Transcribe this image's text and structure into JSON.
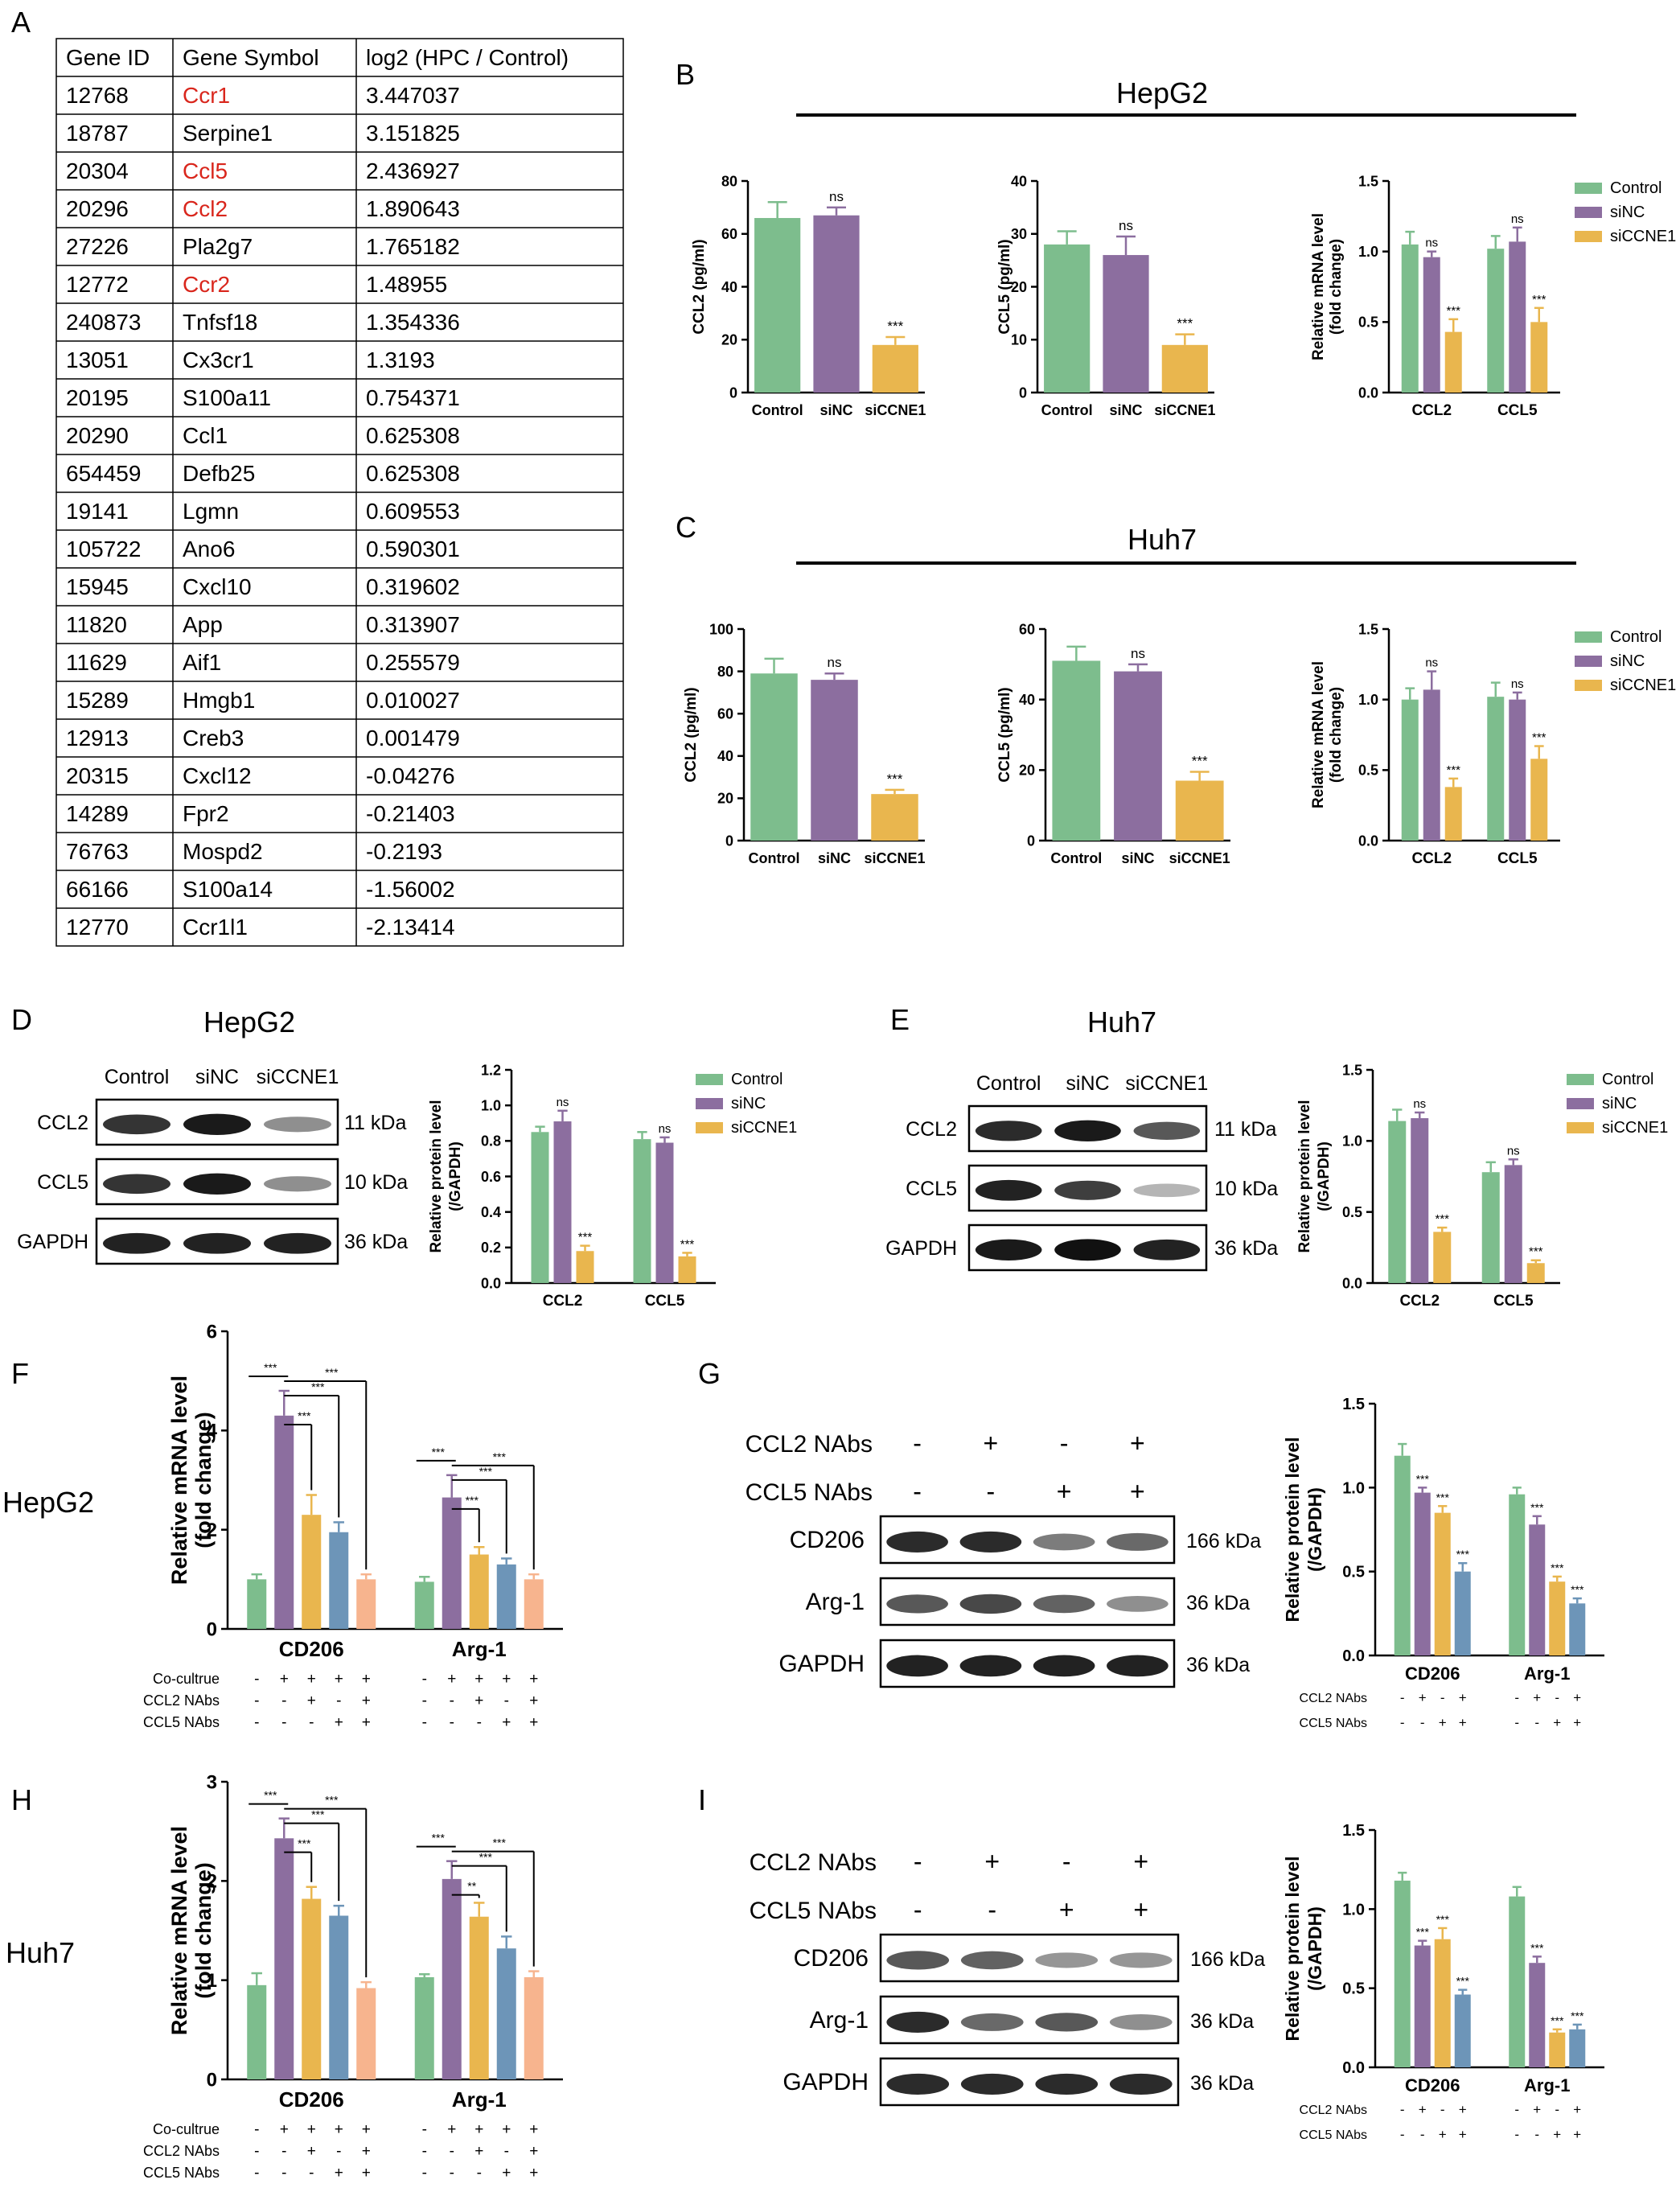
{
  "panel_letters": [
    "A",
    "B",
    "C",
    "D",
    "E",
    "F",
    "G",
    "H",
    "I"
  ],
  "table": {
    "headers": [
      "Gene ID",
      "Gene Symbol",
      "log2 (HPC / Control)"
    ],
    "highlight_color": "#d9261c",
    "rows": [
      [
        "12768",
        "Ccr1",
        "3.447037",
        true
      ],
      [
        "18787",
        "Serpine1",
        "3.151825",
        false
      ],
      [
        "20304",
        "Ccl5",
        "2.436927",
        true
      ],
      [
        "20296",
        "Ccl2",
        "1.890643",
        true
      ],
      [
        "27226",
        "Pla2g7",
        "1.765182",
        false
      ],
      [
        "12772",
        "Ccr2",
        "1.48955",
        true
      ],
      [
        "240873",
        "Tnfsf18",
        "1.354336",
        false
      ],
      [
        "13051",
        "Cx3cr1",
        "1.3193",
        false
      ],
      [
        "20195",
        "S100a11",
        "0.754371",
        false
      ],
      [
        "20290",
        "Ccl1",
        "0.625308",
        false
      ],
      [
        "654459",
        "Defb25",
        "0.625308",
        false
      ],
      [
        "19141",
        "Lgmn",
        "0.609553",
        false
      ],
      [
        "105722",
        "Ano6",
        "0.590301",
        false
      ],
      [
        "15945",
        "Cxcl10",
        "0.319602",
        false
      ],
      [
        "11820",
        "App",
        "0.313907",
        false
      ],
      [
        "11629",
        "Aif1",
        "0.255579",
        false
      ],
      [
        "15289",
        "Hmgb1",
        "0.010027",
        false
      ],
      [
        "12913",
        "Creb3",
        "0.001479",
        false
      ],
      [
        "20315",
        "Cxcl12",
        "-0.04276",
        false
      ],
      [
        "14289",
        "Fpr2",
        "-0.21403",
        false
      ],
      [
        "76763",
        "Mospd2",
        "-0.2193",
        false
      ],
      [
        "66166",
        "S100a14",
        "-1.56002",
        false
      ],
      [
        "12770",
        "Ccr1l1",
        "-2.13414",
        false
      ]
    ]
  },
  "colors": {
    "Control": "#7dbd8d",
    "siNC": "#8c6e9f",
    "siCCNE1": "#e9b64e",
    "blue": "#6d95b8",
    "peach": "#f7b48e",
    "sig": "#000000"
  },
  "legend3": [
    "Control",
    "siNC",
    "siCCNE1"
  ],
  "titles": {
    "B": "HepG2",
    "C": "Huh7",
    "D": "HepG2",
    "E": "Huh7",
    "F": "HepG2",
    "H": "Huh7"
  },
  "blots": {
    "D": {
      "lanes": [
        "Control",
        "siNC",
        "siCCNE1"
      ],
      "rows": [
        "CCL2",
        "CCL5",
        "GAPDH"
      ],
      "sizes": [
        "11 kDa",
        "10 kDa",
        "36 kDa"
      ]
    },
    "E": {
      "lanes": [
        "Control",
        "siNC",
        "siCCNE1"
      ],
      "rows": [
        "CCL2",
        "CCL5",
        "GAPDH"
      ],
      "sizes": [
        "11 kDa",
        "10 kDa",
        "36 kDa"
      ]
    },
    "G": {
      "treat": [
        [
          "CCL2 NAbs",
          "-",
          "+",
          "-",
          "+"
        ],
        [
          "CCL5 NAbs",
          "-",
          "-",
          "+",
          "+"
        ]
      ],
      "rows": [
        "CD206",
        "Arg-1",
        "GAPDH"
      ],
      "sizes": [
        "166 kDa",
        "36 kDa",
        "36 kDa"
      ]
    },
    "I": {
      "treat": [
        [
          "CCL2 NAbs",
          "-",
          "+",
          "-",
          "+"
        ],
        [
          "CCL5 NAbs",
          "-",
          "-",
          "+",
          "+"
        ]
      ],
      "rows": [
        "CD206",
        "Arg-1",
        "GAPDH"
      ],
      "sizes": [
        "166 kDa",
        "36 kDa",
        "36 kDa"
      ]
    }
  },
  "chart_data": [
    {
      "id": "B1",
      "type": "bar",
      "categories": [
        "Control",
        "siNC",
        "siCCNE1"
      ],
      "values": [
        66,
        67,
        18
      ],
      "errors": [
        6,
        3,
        3
      ],
      "sig": [
        "",
        "ns",
        "***"
      ],
      "ylabel": "CCL2 (pg/ml)",
      "ylim": [
        0,
        80
      ],
      "yticks": [
        0,
        20,
        40,
        60,
        80
      ]
    },
    {
      "id": "B2",
      "type": "bar",
      "categories": [
        "Control",
        "siNC",
        "siCCNE1"
      ],
      "values": [
        28,
        26,
        9
      ],
      "errors": [
        2.5,
        3.5,
        2
      ],
      "sig": [
        "",
        "ns",
        "***"
      ],
      "ylabel": "CCL5 (pg/ml)",
      "ylim": [
        0,
        40
      ],
      "yticks": [
        0,
        10,
        20,
        30,
        40
      ]
    },
    {
      "id": "B3",
      "type": "bar",
      "categories": [
        "CCL2",
        "CCL5"
      ],
      "series": [
        {
          "name": "Control",
          "values": [
            1.05,
            1.02
          ],
          "errors": [
            0.09,
            0.09
          ],
          "sig": [
            "",
            ""
          ]
        },
        {
          "name": "siNC",
          "values": [
            0.96,
            1.07
          ],
          "errors": [
            0.04,
            0.1
          ],
          "sig": [
            "ns",
            "ns"
          ]
        },
        {
          "name": "siCCNE1",
          "values": [
            0.43,
            0.5
          ],
          "errors": [
            0.09,
            0.1
          ],
          "sig": [
            "***",
            "***"
          ]
        }
      ],
      "ylabel": "Relative mRNA level (fold change)",
      "ylim": [
        0,
        1.5
      ],
      "yticks": [
        "0.0",
        "0.5",
        "1.0",
        "1.5"
      ]
    },
    {
      "id": "C1",
      "type": "bar",
      "categories": [
        "Control",
        "siNC",
        "siCCNE1"
      ],
      "values": [
        79,
        76,
        22
      ],
      "errors": [
        7,
        3,
        2
      ],
      "sig": [
        "",
        "ns",
        "***"
      ],
      "ylabel": "CCL2 (pg/ml)",
      "ylim": [
        0,
        100
      ],
      "yticks": [
        0,
        20,
        40,
        60,
        80,
        100
      ]
    },
    {
      "id": "C2",
      "type": "bar",
      "categories": [
        "Control",
        "siNC",
        "siCCNE1"
      ],
      "values": [
        51,
        48,
        17
      ],
      "errors": [
        4,
        2,
        2.5
      ],
      "sig": [
        "",
        "ns",
        "***"
      ],
      "ylabel": "CCL5 (pg/ml)",
      "ylim": [
        0,
        60
      ],
      "yticks": [
        0,
        20,
        40,
        60
      ]
    },
    {
      "id": "C3",
      "type": "bar",
      "categories": [
        "CCL2",
        "CCL5"
      ],
      "series": [
        {
          "name": "Control",
          "values": [
            1.0,
            1.02
          ],
          "errors": [
            0.08,
            0.1
          ],
          "sig": [
            "",
            ""
          ]
        },
        {
          "name": "siNC",
          "values": [
            1.07,
            1.0
          ],
          "errors": [
            0.13,
            0.05
          ],
          "sig": [
            "ns",
            "ns"
          ]
        },
        {
          "name": "siCCNE1",
          "values": [
            0.38,
            0.58
          ],
          "errors": [
            0.06,
            0.09
          ],
          "sig": [
            "***",
            "***"
          ]
        }
      ],
      "ylabel": "Relative mRNA level (fold change)",
      "ylim": [
        0,
        1.5
      ],
      "yticks": [
        "0.0",
        "0.5",
        "1.0",
        "1.5"
      ]
    },
    {
      "id": "D1",
      "type": "bar",
      "categories": [
        "CCL2",
        "CCL5"
      ],
      "series": [
        {
          "name": "Control",
          "values": [
            0.85,
            0.81
          ],
          "errors": [
            0.03,
            0.04
          ],
          "sig": [
            "",
            ""
          ]
        },
        {
          "name": "siNC",
          "values": [
            0.91,
            0.79
          ],
          "errors": [
            0.06,
            0.03
          ],
          "sig": [
            "ns",
            "ns"
          ]
        },
        {
          "name": "siCCNE1",
          "values": [
            0.18,
            0.15
          ],
          "errors": [
            0.03,
            0.02
          ],
          "sig": [
            "***",
            "***"
          ]
        }
      ],
      "ylabel": "Relative protein level (/GAPDH)",
      "ylim": [
        0,
        1.2
      ],
      "yticks": [
        "0.0",
        "0.2",
        "0.4",
        "0.6",
        "0.8",
        "1.0",
        "1.2"
      ]
    },
    {
      "id": "E1",
      "type": "bar",
      "categories": [
        "CCL2",
        "CCL5"
      ],
      "series": [
        {
          "name": "Control",
          "values": [
            1.14,
            0.78
          ],
          "errors": [
            0.08,
            0.07
          ],
          "sig": [
            "",
            ""
          ]
        },
        {
          "name": "siNC",
          "values": [
            1.16,
            0.83
          ],
          "errors": [
            0.04,
            0.04
          ],
          "sig": [
            "ns",
            "ns"
          ]
        },
        {
          "name": "siCCNE1",
          "values": [
            0.36,
            0.14
          ],
          "errors": [
            0.03,
            0.02
          ],
          "sig": [
            "***",
            "***"
          ]
        }
      ],
      "ylabel": "Relative protein level (/GAPDH)",
      "ylim": [
        0,
        1.5
      ],
      "yticks": [
        "0.0",
        "0.5",
        "1.0",
        "1.5"
      ]
    },
    {
      "id": "F1",
      "type": "bar",
      "categories": [
        "CD206",
        "Arg-1"
      ],
      "series": [
        {
          "name": "s1",
          "values": [
            1.0,
            0.95
          ],
          "errors": [
            0.1,
            0.1
          ]
        },
        {
          "name": "s2",
          "values": [
            4.3,
            2.65
          ],
          "errors": [
            0.5,
            0.45
          ]
        },
        {
          "name": "s3",
          "values": [
            2.3,
            1.5
          ],
          "errors": [
            0.4,
            0.15
          ]
        },
        {
          "name": "s4",
          "values": [
            1.95,
            1.3
          ],
          "errors": [
            0.2,
            0.12
          ]
        },
        {
          "name": "s5",
          "values": [
            1.0,
            1.0
          ],
          "errors": [
            0.1,
            0.1
          ]
        }
      ],
      "brackets": [
        [
          "***",
          "***",
          "***",
          "***"
        ],
        [
          "***",
          "***",
          "***",
          "***"
        ]
      ],
      "ylabel": "Relative mRNA level (fold change)",
      "ylim": [
        0,
        6
      ],
      "yticks": [
        0,
        2,
        4,
        6
      ],
      "cond": [
        [
          "Co-cultrue",
          "-",
          "+",
          "+",
          "+",
          "+"
        ],
        [
          "CCL2 NAbs",
          "-",
          "-",
          "+",
          "-",
          "+"
        ],
        [
          "CCL5 NAbs",
          "-",
          "-",
          "-",
          "+",
          "+"
        ]
      ]
    },
    {
      "id": "G1",
      "type": "bar",
      "categories": [
        "CD206",
        "Arg-1"
      ],
      "series": [
        {
          "name": "s1",
          "values": [
            1.19,
            0.96
          ],
          "errors": [
            0.07,
            0.04
          ],
          "sig": [
            "",
            ""
          ]
        },
        {
          "name": "s2",
          "values": [
            0.97,
            0.78
          ],
          "errors": [
            0.03,
            0.05
          ],
          "sig": [
            "***",
            "***"
          ]
        },
        {
          "name": "s3",
          "values": [
            0.85,
            0.44
          ],
          "errors": [
            0.04,
            0.03
          ],
          "sig": [
            "***",
            "***"
          ]
        },
        {
          "name": "s4",
          "values": [
            0.5,
            0.31
          ],
          "errors": [
            0.05,
            0.03
          ],
          "sig": [
            "***",
            "***"
          ]
        }
      ],
      "ylabel": "Relative protein level (/GAPDH)",
      "ylim": [
        0,
        1.5
      ],
      "yticks": [
        "0.0",
        "0.5",
        "1.0",
        "1.5"
      ],
      "cond": [
        [
          "CCL2 NAbs",
          "-",
          "+",
          "-",
          "+"
        ],
        [
          "CCL5 NAbs",
          "-",
          "-",
          "+",
          "+"
        ]
      ]
    },
    {
      "id": "H1",
      "type": "bar",
      "categories": [
        "CD206",
        "Arg-1"
      ],
      "series": [
        {
          "name": "s1",
          "values": [
            0.95,
            1.03
          ],
          "errors": [
            0.12,
            0.03
          ]
        },
        {
          "name": "s2",
          "values": [
            2.43,
            2.02
          ],
          "errors": [
            0.2,
            0.18
          ]
        },
        {
          "name": "s3",
          "values": [
            1.82,
            1.64
          ],
          "errors": [
            0.12,
            0.14
          ]
        },
        {
          "name": "s4",
          "values": [
            1.65,
            1.32
          ],
          "errors": [
            0.1,
            0.12
          ]
        },
        {
          "name": "s5",
          "values": [
            0.92,
            1.03
          ],
          "errors": [
            0.06,
            0.06
          ]
        }
      ],
      "brackets": [
        [
          "***",
          "***",
          "***",
          "***"
        ],
        [
          "***",
          "**",
          "***",
          "***"
        ]
      ],
      "ylabel": "Relative mRNA level (fold change)",
      "ylim": [
        0,
        3
      ],
      "yticks": [
        0,
        1,
        2,
        3
      ],
      "cond": [
        [
          "Co-cultrue",
          "-",
          "+",
          "+",
          "+",
          "+"
        ],
        [
          "CCL2 NAbs",
          "-",
          "-",
          "+",
          "-",
          "+"
        ],
        [
          "CCL5 NAbs",
          "-",
          "-",
          "-",
          "+",
          "+"
        ]
      ]
    },
    {
      "id": "I1",
      "type": "bar",
      "categories": [
        "CD206",
        "Arg-1"
      ],
      "series": [
        {
          "name": "s1",
          "values": [
            1.18,
            1.08
          ],
          "errors": [
            0.05,
            0.06
          ],
          "sig": [
            "",
            ""
          ]
        },
        {
          "name": "s2",
          "values": [
            0.77,
            0.66
          ],
          "errors": [
            0.03,
            0.04
          ],
          "sig": [
            "***",
            "***"
          ]
        },
        {
          "name": "s3",
          "values": [
            0.81,
            0.22
          ],
          "errors": [
            0.07,
            0.02
          ],
          "sig": [
            "***",
            "***"
          ]
        },
        {
          "name": "s4",
          "values": [
            0.46,
            0.24
          ],
          "errors": [
            0.03,
            0.03
          ],
          "sig": [
            "***",
            "***"
          ]
        }
      ],
      "ylabel": "Relative protein level (/GAPDH)",
      "ylim": [
        0,
        1.5
      ],
      "yticks": [
        "0.0",
        "0.5",
        "1.0",
        "1.5"
      ],
      "cond": [
        [
          "CCL2 NAbs",
          "-",
          "+",
          "-",
          "+"
        ],
        [
          "CCL5 NAbs",
          "-",
          "-",
          "+",
          "+"
        ]
      ]
    }
  ]
}
